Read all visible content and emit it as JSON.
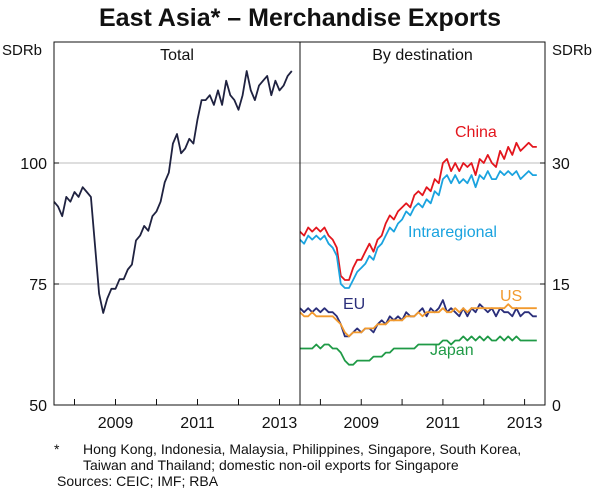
{
  "title": "East Asia* – Merchandise Exports",
  "footnote": {
    "marker": "*",
    "line1": "Hong Kong, Indonesia, Malaysia, Philippines, Singapore, South Korea,",
    "line2": "Taiwan and Thailand; domestic non-oil exports for Singapore"
  },
  "sources": "Sources: CEIC; IMF; RBA",
  "chart_data": [
    {
      "type": "line",
      "panel_title": "Total",
      "ylabel": "SDRb",
      "ylim": [
        50,
        125
      ],
      "yticks": [
        50,
        75,
        100
      ],
      "xlim": [
        2007.5,
        2013.5
      ],
      "xticks": [
        2009,
        2011,
        2013
      ],
      "grid": "horizontal",
      "series": [
        {
          "color": "#1f2240",
          "x": [
            2007.5,
            2007.6,
            2007.7,
            2007.8,
            2007.9,
            2008.0,
            2008.1,
            2008.2,
            2008.3,
            2008.4,
            2008.5,
            2008.6,
            2008.7,
            2008.8,
            2008.9,
            2009.0,
            2009.1,
            2009.2,
            2009.3,
            2009.4,
            2009.5,
            2009.6,
            2009.7,
            2009.8,
            2009.9,
            2010.0,
            2010.1,
            2010.2,
            2010.3,
            2010.4,
            2010.5,
            2010.6,
            2010.7,
            2010.8,
            2010.9,
            2011.0,
            2011.1,
            2011.2,
            2011.3,
            2011.4,
            2011.5,
            2011.6,
            2011.7,
            2011.8,
            2011.9,
            2012.0,
            2012.1,
            2012.2,
            2012.3,
            2012.4,
            2012.5,
            2012.6,
            2012.7,
            2012.8,
            2012.9,
            2013.0,
            2013.1,
            2013.2,
            2013.3
          ],
          "values": [
            92,
            91,
            89,
            93,
            92,
            94,
            93,
            95,
            94,
            93,
            83,
            73,
            69,
            72,
            74,
            74,
            76,
            76,
            78,
            79,
            84,
            85,
            87,
            86,
            89,
            90,
            92,
            96,
            98,
            104,
            106,
            102,
            103,
            105,
            104,
            109,
            113,
            113,
            114,
            112,
            115,
            112,
            117,
            114,
            113,
            111,
            114,
            119,
            115,
            113,
            116,
            117,
            118,
            114,
            117,
            115,
            116,
            118,
            119
          ]
        }
      ]
    },
    {
      "type": "line",
      "panel_title": "By destination",
      "ylabel": "SDRb",
      "ylim": [
        0,
        45
      ],
      "yticks": [
        0,
        15,
        30
      ],
      "xlim": [
        2007.5,
        2013.5
      ],
      "xticks": [
        2009,
        2011,
        2013
      ],
      "grid": "horizontal",
      "series": [
        {
          "name": "China",
          "color": "#e3161d",
          "x": [
            2007.5,
            2007.6,
            2007.7,
            2007.8,
            2007.9,
            2008.0,
            2008.1,
            2008.2,
            2008.3,
            2008.4,
            2008.5,
            2008.6,
            2008.7,
            2008.8,
            2008.9,
            2009.0,
            2009.1,
            2009.2,
            2009.3,
            2009.4,
            2009.5,
            2009.6,
            2009.7,
            2009.8,
            2009.9,
            2010.0,
            2010.1,
            2010.2,
            2010.3,
            2010.4,
            2010.5,
            2010.6,
            2010.7,
            2010.8,
            2010.9,
            2011.0,
            2011.1,
            2011.2,
            2011.3,
            2011.4,
            2011.5,
            2011.6,
            2011.7,
            2011.8,
            2011.9,
            2012.0,
            2012.1,
            2012.2,
            2012.3,
            2012.4,
            2012.5,
            2012.6,
            2012.7,
            2012.8,
            2012.9,
            2013.0,
            2013.1,
            2013.2,
            2013.3
          ],
          "values": [
            21.5,
            21,
            22,
            21.5,
            22,
            21.5,
            22,
            21,
            20.5,
            19.5,
            16,
            15.5,
            15.5,
            17,
            18,
            18,
            19,
            20,
            19,
            20.5,
            21,
            22.5,
            23.5,
            23,
            24,
            24.5,
            25,
            24.5,
            26,
            26.5,
            26,
            27,
            26.5,
            28,
            27.5,
            30,
            30.5,
            29,
            30,
            29,
            30,
            29.5,
            30,
            28.5,
            30.5,
            30,
            31,
            30,
            29.5,
            31.5,
            30.5,
            32,
            31,
            32.5,
            31.5,
            32,
            32.5,
            32,
            32
          ]
        },
        {
          "name": "Intraregional",
          "color": "#1aa3df",
          "x": [
            2007.5,
            2007.6,
            2007.7,
            2007.8,
            2007.9,
            2008.0,
            2008.1,
            2008.2,
            2008.3,
            2008.4,
            2008.5,
            2008.6,
            2008.7,
            2008.8,
            2008.9,
            2009.0,
            2009.1,
            2009.2,
            2009.3,
            2009.4,
            2009.5,
            2009.6,
            2009.7,
            2009.8,
            2009.9,
            2010.0,
            2010.1,
            2010.2,
            2010.3,
            2010.4,
            2010.5,
            2010.6,
            2010.7,
            2010.8,
            2010.9,
            2011.0,
            2011.1,
            2011.2,
            2011.3,
            2011.4,
            2011.5,
            2011.6,
            2011.7,
            2011.8,
            2011.9,
            2012.0,
            2012.1,
            2012.2,
            2012.3,
            2012.4,
            2012.5,
            2012.6,
            2012.7,
            2012.8,
            2012.9,
            2013.0,
            2013.1,
            2013.2,
            2013.3
          ],
          "values": [
            20.5,
            20,
            21,
            20.5,
            21,
            20.5,
            21,
            20,
            19.5,
            18.5,
            15,
            14.5,
            14.5,
            15.5,
            16.5,
            17,
            17.5,
            18.5,
            18,
            19.5,
            20,
            21,
            22,
            21.5,
            22.5,
            23,
            24,
            23.5,
            24.5,
            25,
            24.5,
            25.5,
            25,
            26.5,
            26,
            28,
            28.5,
            27.5,
            28.5,
            27.5,
            28,
            27.5,
            28.5,
            27,
            28.5,
            28,
            29,
            28,
            28,
            29,
            28.5,
            29,
            28.5,
            29,
            28,
            28.5,
            29,
            28.5,
            28.5
          ]
        },
        {
          "name": "EU",
          "color": "#2a2e7a",
          "x": [
            2007.5,
            2007.6,
            2007.7,
            2007.8,
            2007.9,
            2008.0,
            2008.1,
            2008.2,
            2008.3,
            2008.4,
            2008.5,
            2008.6,
            2008.7,
            2008.8,
            2008.9,
            2009.0,
            2009.1,
            2009.2,
            2009.3,
            2009.4,
            2009.5,
            2009.6,
            2009.7,
            2009.8,
            2009.9,
            2010.0,
            2010.1,
            2010.2,
            2010.3,
            2010.4,
            2010.5,
            2010.6,
            2010.7,
            2010.8,
            2010.9,
            2011.0,
            2011.1,
            2011.2,
            2011.3,
            2011.4,
            2011.5,
            2011.6,
            2011.7,
            2011.8,
            2011.9,
            2012.0,
            2012.1,
            2012.2,
            2012.3,
            2012.4,
            2012.5,
            2012.6,
            2012.7,
            2012.8,
            2012.9,
            2013.0,
            2013.1,
            2013.2,
            2013.3
          ],
          "values": [
            12,
            11.5,
            12,
            11.5,
            12,
            11.5,
            12,
            11.5,
            11.5,
            11,
            10,
            8.5,
            8.5,
            9,
            9.5,
            9,
            9.5,
            9.5,
            9,
            10,
            10.5,
            10,
            11,
            10.5,
            11,
            10.5,
            11.5,
            11,
            11,
            11.5,
            12,
            11,
            12,
            11.5,
            12,
            13,
            11.5,
            12,
            11.5,
            11,
            12,
            11,
            12,
            11.5,
            12.5,
            12,
            11.5,
            12,
            11,
            12,
            11.5,
            11.5,
            11,
            12,
            11,
            11.5,
            11.5,
            11,
            11
          ]
        },
        {
          "name": "US",
          "color": "#f29a2e",
          "x": [
            2007.5,
            2007.6,
            2007.7,
            2007.8,
            2007.9,
            2008.0,
            2008.1,
            2008.2,
            2008.3,
            2008.4,
            2008.5,
            2008.6,
            2008.7,
            2008.8,
            2008.9,
            2009.0,
            2009.1,
            2009.2,
            2009.3,
            2009.4,
            2009.5,
            2009.6,
            2009.7,
            2009.8,
            2009.9,
            2010.0,
            2010.1,
            2010.2,
            2010.3,
            2010.4,
            2010.5,
            2010.6,
            2010.7,
            2010.8,
            2010.9,
            2011.0,
            2011.1,
            2011.2,
            2011.3,
            2011.4,
            2011.5,
            2011.6,
            2011.7,
            2011.8,
            2011.9,
            2012.0,
            2012.1,
            2012.2,
            2012.3,
            2012.4,
            2012.5,
            2012.6,
            2012.7,
            2012.8,
            2012.9,
            2013.0,
            2013.1,
            2013.2,
            2013.3
          ],
          "values": [
            11.5,
            11,
            11,
            11.5,
            11,
            11,
            11,
            11,
            11,
            10.5,
            10,
            9,
            8.5,
            9,
            9,
            9,
            9.5,
            9.5,
            9.5,
            10,
            10,
            10,
            10.5,
            10.5,
            10.5,
            10.5,
            11,
            11,
            11,
            11.5,
            11,
            11.5,
            11.5,
            11.5,
            11.5,
            12,
            11.5,
            11.5,
            12,
            11.5,
            12,
            11.5,
            12,
            12,
            12,
            12,
            12,
            12,
            12,
            12,
            12,
            12.5,
            12,
            12,
            12,
            12,
            12,
            12,
            12
          ]
        },
        {
          "name": "Japan",
          "color": "#1f9a46",
          "x": [
            2007.5,
            2007.6,
            2007.7,
            2007.8,
            2007.9,
            2008.0,
            2008.1,
            2008.2,
            2008.3,
            2008.4,
            2008.5,
            2008.6,
            2008.7,
            2008.8,
            2008.9,
            2009.0,
            2009.1,
            2009.2,
            2009.3,
            2009.4,
            2009.5,
            2009.6,
            2009.7,
            2009.8,
            2009.9,
            2010.0,
            2010.1,
            2010.2,
            2010.3,
            2010.4,
            2010.5,
            2010.6,
            2010.7,
            2010.8,
            2010.9,
            2011.0,
            2011.1,
            2011.2,
            2011.3,
            2011.4,
            2011.5,
            2011.6,
            2011.7,
            2011.8,
            2011.9,
            2012.0,
            2012.1,
            2012.2,
            2012.3,
            2012.4,
            2012.5,
            2012.6,
            2012.7,
            2012.8,
            2012.9,
            2013.0,
            2013.1,
            2013.2,
            2013.3
          ],
          "values": [
            7,
            7,
            7,
            7,
            7.5,
            7,
            7.5,
            7.5,
            7,
            7,
            6.5,
            5.5,
            5,
            5,
            5.5,
            5.5,
            5.5,
            5.5,
            6,
            6,
            6,
            6.5,
            6.5,
            7,
            7,
            7,
            7,
            7,
            7,
            7.5,
            7.5,
            7.5,
            7.5,
            7.5,
            7.5,
            8,
            8,
            7.5,
            8,
            8,
            8.5,
            8,
            8.5,
            8,
            8.5,
            8,
            8.5,
            8,
            8,
            8.5,
            8,
            8.5,
            8,
            8.5,
            8,
            8,
            8,
            8,
            8
          ]
        }
      ]
    }
  ]
}
